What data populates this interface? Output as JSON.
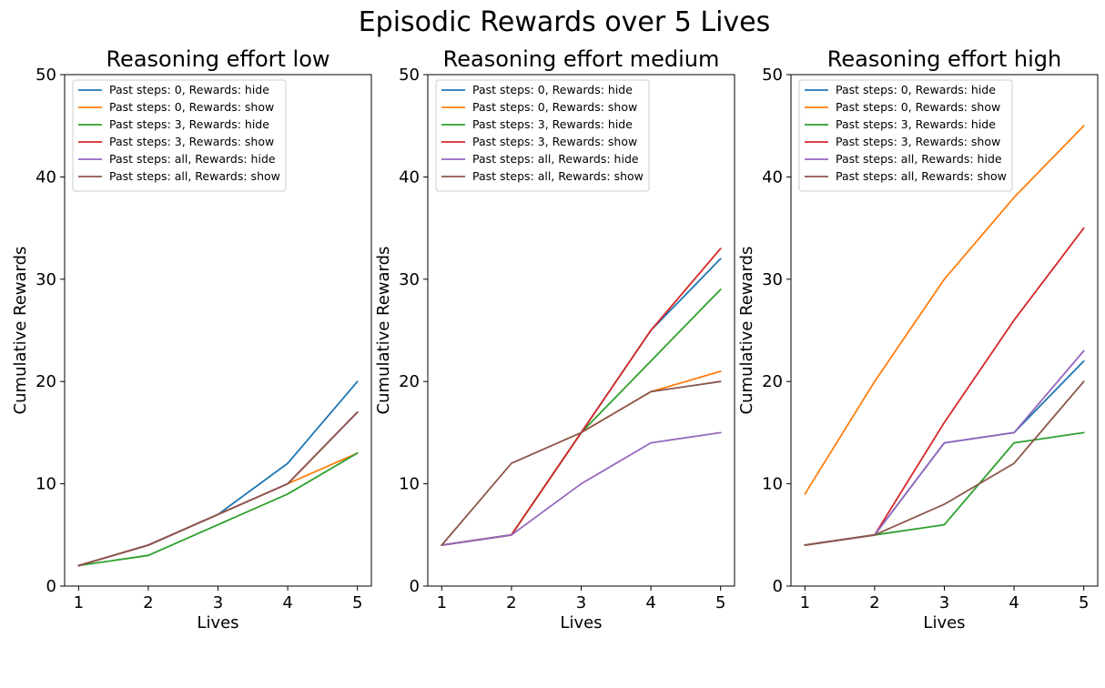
{
  "figure_title": "Episodic Rewards over 5 Lives",
  "colors": {
    "blue": "#1f77b4",
    "orange": "#ff7f0e",
    "green": "#2ca02c",
    "red": "#d62728",
    "purple": "#9467bd",
    "brown": "#8c564b"
  },
  "chart_data": [
    {
      "type": "line",
      "title": "Reasoning effort low",
      "xlabel": "Lives",
      "ylabel": "Cumulative Rewards",
      "x": [
        1,
        2,
        3,
        4,
        5
      ],
      "xticks": [
        "1",
        "2",
        "3",
        "4",
        "5"
      ],
      "ylim": [
        0,
        50
      ],
      "yticks": [
        "0",
        "10",
        "20",
        "30",
        "40",
        "50"
      ],
      "legend_position": "top-left",
      "series": [
        {
          "name": "Past steps: 0, Rewards: hide",
          "color": "#1f77b4",
          "values": [
            2,
            4,
            7,
            12,
            20
          ]
        },
        {
          "name": "Past steps: 0, Rewards: show",
          "color": "#ff7f0e",
          "values": [
            2,
            4,
            7,
            10,
            13
          ]
        },
        {
          "name": "Past steps: 3, Rewards: hide",
          "color": "#2ca02c",
          "values": [
            2,
            3,
            6,
            9,
            13
          ]
        },
        {
          "name": "Past steps: 3, Rewards: show",
          "color": "#d62728",
          "values": [
            2,
            4,
            7,
            10,
            17
          ]
        },
        {
          "name": "Past steps: all, Rewards: hide",
          "color": "#9467bd",
          "values": [
            2,
            4,
            7,
            10,
            17
          ]
        },
        {
          "name": "Past steps: all, Rewards: show",
          "color": "#8c564b",
          "values": [
            2,
            4,
            7,
            10,
            17
          ]
        }
      ]
    },
    {
      "type": "line",
      "title": "Reasoning effort medium",
      "xlabel": "Lives",
      "ylabel": "Cumulative Rewards",
      "x": [
        1,
        2,
        3,
        4,
        5
      ],
      "xticks": [
        "1",
        "2",
        "3",
        "4",
        "5"
      ],
      "ylim": [
        0,
        50
      ],
      "yticks": [
        "0",
        "10",
        "20",
        "30",
        "40",
        "50"
      ],
      "legend_position": "top-left",
      "series": [
        {
          "name": "Past steps: 0, Rewards: hide",
          "color": "#1f77b4",
          "values": [
            4,
            5,
            15,
            25,
            32
          ]
        },
        {
          "name": "Past steps: 0, Rewards: show",
          "color": "#ff7f0e",
          "values": [
            4,
            5,
            15,
            19,
            21
          ]
        },
        {
          "name": "Past steps: 3, Rewards: hide",
          "color": "#2ca02c",
          "values": [
            4,
            5,
            15,
            22,
            29
          ]
        },
        {
          "name": "Past steps: 3, Rewards: show",
          "color": "#d62728",
          "values": [
            4,
            5,
            15,
            25,
            33
          ]
        },
        {
          "name": "Past steps: all, Rewards: hide",
          "color": "#9467bd",
          "values": [
            4,
            5,
            10,
            14,
            15
          ]
        },
        {
          "name": "Past steps: all, Rewards: show",
          "color": "#8c564b",
          "values": [
            4,
            12,
            15,
            19,
            20
          ]
        }
      ]
    },
    {
      "type": "line",
      "title": "Reasoning effort high",
      "xlabel": "Lives",
      "ylabel": "Cumulative Rewards",
      "x": [
        1,
        2,
        3,
        4,
        5
      ],
      "xticks": [
        "1",
        "2",
        "3",
        "4",
        "5"
      ],
      "ylim": [
        0,
        50
      ],
      "yticks": [
        "0",
        "10",
        "20",
        "30",
        "40",
        "50"
      ],
      "legend_position": "top-left",
      "series": [
        {
          "name": "Past steps: 0, Rewards: hide",
          "color": "#1f77b4",
          "values": [
            4,
            5,
            14,
            15,
            22
          ]
        },
        {
          "name": "Past steps: 0, Rewards: show",
          "color": "#ff7f0e",
          "values": [
            9,
            20,
            30,
            38,
            45
          ]
        },
        {
          "name": "Past steps: 3, Rewards: hide",
          "color": "#2ca02c",
          "values": [
            4,
            5,
            6,
            14,
            15
          ]
        },
        {
          "name": "Past steps: 3, Rewards: show",
          "color": "#d62728",
          "values": [
            4,
            5,
            16,
            26,
            35
          ]
        },
        {
          "name": "Past steps: all, Rewards: hide",
          "color": "#9467bd",
          "values": [
            4,
            5,
            14,
            15,
            23
          ]
        },
        {
          "name": "Past steps: all, Rewards: show",
          "color": "#8c564b",
          "values": [
            4,
            5,
            8,
            12,
            20
          ]
        }
      ]
    }
  ]
}
